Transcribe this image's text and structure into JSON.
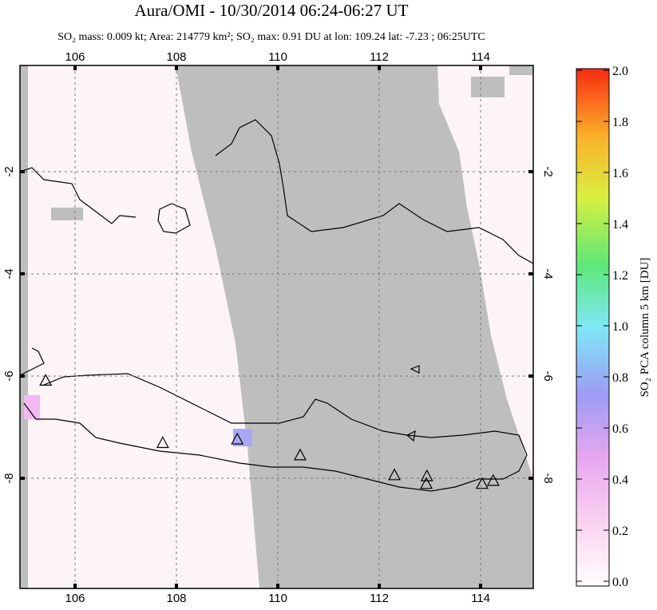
{
  "header": {
    "title": "Aura/OMI - 10/30/2014 06:24-06:27 UT",
    "subtitle": "SO₂ mass: 0.009 kt; Area: 214779 km²; SO₂ max: 0.91 DU at lon: 109.24 lat: -7.23 ; 06:25UTC"
  },
  "map": {
    "xlim": [
      104.913,
      115.039
    ],
    "ylim": [
      -10.156,
      0.078
    ],
    "xticks": [
      106,
      108,
      110,
      112,
      114
    ],
    "yticks": [
      -2,
      -4,
      -6,
      -8
    ],
    "volcanoes": [
      {
        "lon": 105.42,
        "lat": -6.1
      },
      {
        "lon": 107.73,
        "lat": -7.32
      },
      {
        "lon": 109.2,
        "lat": -7.25
      },
      {
        "lon": 110.44,
        "lat": -7.56
      },
      {
        "lon": 112.3,
        "lat": -7.95
      },
      {
        "lon": 112.94,
        "lat": -7.97
      },
      {
        "lon": 112.93,
        "lat": -8.12
      },
      {
        "lon": 114.03,
        "lat": -8.12
      },
      {
        "lon": 114.25,
        "lat": -8.06
      }
    ]
  },
  "colorbar": {
    "label": "SO₂ PCA column 5 km [DU]",
    "lim": [
      0,
      2
    ],
    "ticks": [
      {
        "value": 0,
        "label": "0.0"
      },
      {
        "value": 0.2,
        "label": "0.2"
      },
      {
        "value": 0.4,
        "label": "0.4"
      },
      {
        "value": 0.6,
        "label": "0.6"
      },
      {
        "value": 0.8,
        "label": "0.8"
      },
      {
        "value": 1,
        "label": "1.0"
      },
      {
        "value": 1.2,
        "label": "1.2"
      },
      {
        "value": 1.4,
        "label": "1.4"
      },
      {
        "value": 1.6,
        "label": "1.6"
      },
      {
        "value": 1.8,
        "label": "1.8"
      },
      {
        "value": 2,
        "label": "2.0"
      }
    ]
  }
}
